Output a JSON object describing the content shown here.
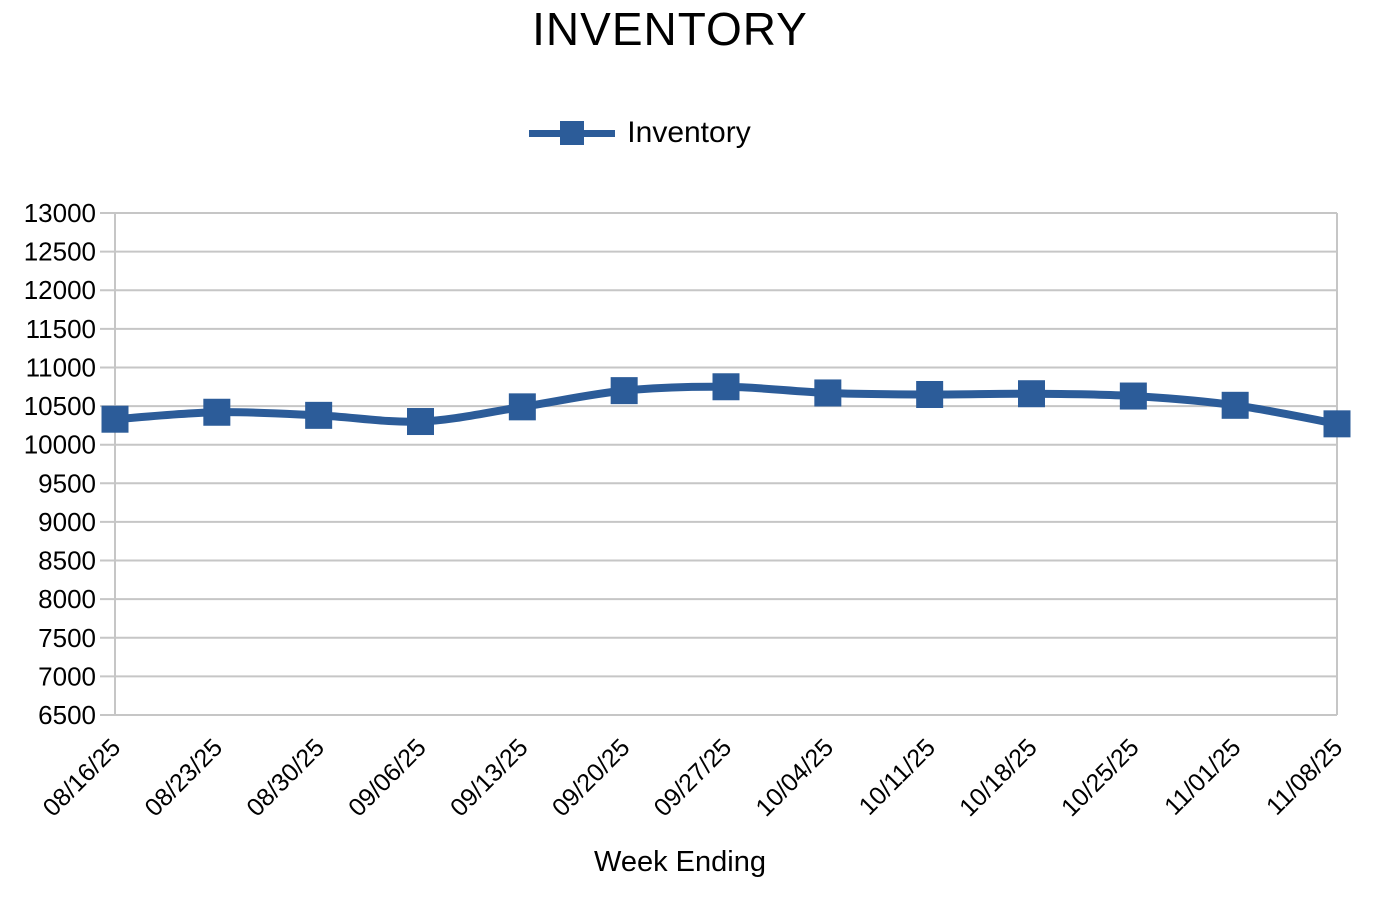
{
  "chart_data": {
    "type": "line",
    "title": "INVENTORY",
    "xlabel": "Week Ending",
    "ylabel": "",
    "legend_position": "top-center",
    "grid": true,
    "categories": [
      "08/16/25",
      "08/23/25",
      "08/30/25",
      "09/06/25",
      "09/13/25",
      "09/20/25",
      "09/27/25",
      "10/04/25",
      "10/11/25",
      "10/18/25",
      "10/25/25",
      "11/01/25",
      "11/08/25"
    ],
    "series": [
      {
        "name": "Inventory",
        "values": [
          10330,
          10420,
          10380,
          10300,
          10490,
          10700,
          10750,
          10670,
          10650,
          10660,
          10630,
          10510,
          10270
        ]
      }
    ],
    "ylim": [
      6500,
      13000
    ],
    "yticks": [
      6500,
      7000,
      7500,
      8000,
      8500,
      9000,
      9500,
      10000,
      10500,
      11000,
      11500,
      12000,
      12500,
      13000
    ],
    "line_color": "#2c5c99",
    "grid_color": "#c6c6c6",
    "text_color": "#000000",
    "background_color": "#ffffff"
  }
}
